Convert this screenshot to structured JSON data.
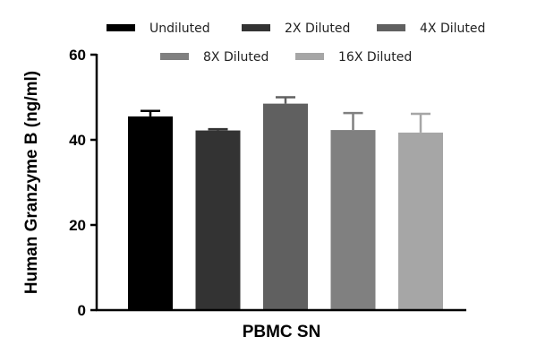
{
  "chart_data": {
    "type": "bar",
    "categories": [
      "PBMC SN"
    ],
    "xlabel": "PBMC SN",
    "ylabel": "Human Granzyme B (ng/ml)",
    "ylim": [
      0,
      60
    ],
    "yticks": [
      "0",
      "20",
      "40",
      "60"
    ],
    "grid": false,
    "legend_position": "top",
    "series": [
      {
        "name": "Undiluted",
        "values": [
          45.5
        ],
        "error": [
          1.3
        ],
        "color": "#000000"
      },
      {
        "name": "2X Diluted",
        "values": [
          42.2
        ],
        "error": [
          0.3
        ],
        "color": "#333333"
      },
      {
        "name": "4X Diluted",
        "values": [
          48.5
        ],
        "error": [
          1.5
        ],
        "color": "#606060"
      },
      {
        "name": "8X Diluted",
        "values": [
          42.3
        ],
        "error": [
          4.0
        ],
        "color": "#808080"
      },
      {
        "name": "16X Diluted",
        "values": [
          41.7
        ],
        "error": [
          4.4
        ],
        "color": "#a6a6a6"
      }
    ]
  }
}
